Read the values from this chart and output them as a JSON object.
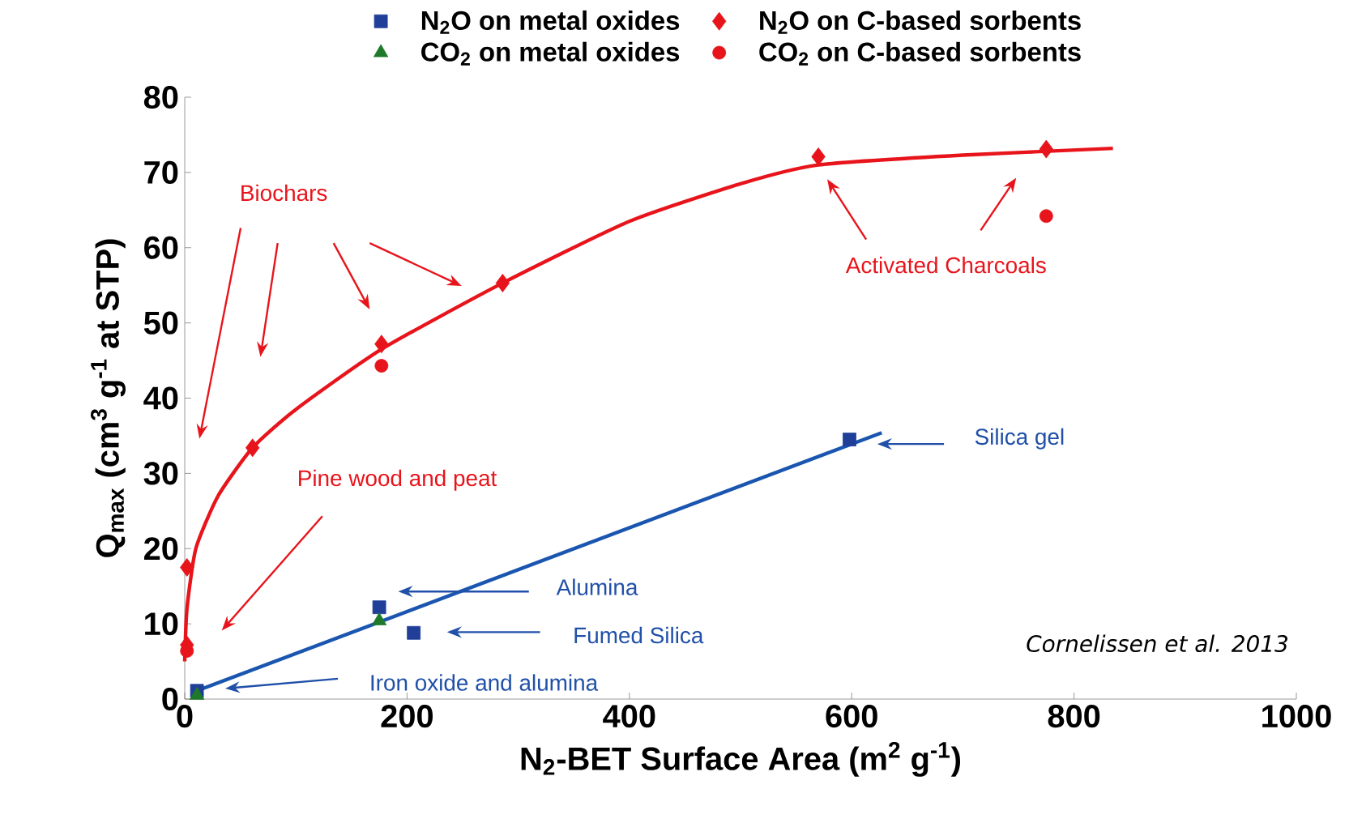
{
  "chart_data": {
    "type": "scatter",
    "xlabel": "N$_{2}$-BET Surface Area (m$^{2}$ g$^{-1}$)",
    "ylabel": "Q$_{max}$    (cm$^{3}$ g$^{-1}$ at STP)",
    "xlim": [
      0,
      1000
    ],
    "ylim": [
      0,
      80
    ],
    "xticks": [
      0,
      200,
      400,
      600,
      800,
      1000
    ],
    "yticks": [
      0,
      10,
      20,
      30,
      40,
      50,
      60,
      70,
      80
    ],
    "grid": false,
    "legend": "top",
    "series": [
      {
        "name": "N$_{2}$O on metal oxides",
        "marker": "square",
        "color": "#1f3f99",
        "x": [
          11,
          175,
          206,
          598
        ],
        "values": [
          1.1,
          12.2,
          8.8,
          34.5
        ]
      },
      {
        "name": "N$_{2}$O on C-based sorbents",
        "marker": "diamond",
        "color": "#e8141b",
        "x": [
          2,
          2,
          61,
          177,
          286,
          570,
          775
        ],
        "values": [
          7.2,
          17.5,
          33.4,
          47.2,
          55.3,
          72.1,
          73.1
        ]
      },
      {
        "name": "CO$_{2}$ on metal oxides",
        "marker": "triangle",
        "color": "#1e7a2a",
        "x": [
          11,
          175
        ],
        "values": [
          0.5,
          10.4
        ]
      },
      {
        "name": "CO$_{2}$ on C-based sorbents",
        "marker": "circle",
        "color": "#e8141b",
        "x": [
          2,
          177,
          775
        ],
        "values": [
          6.4,
          44.3,
          64.2
        ]
      },
      {
        "type": "line",
        "marker": "none",
        "color": "#e8141b",
        "x": [
          0,
          2,
          10,
          30,
          61,
          100,
          177,
          286,
          400,
          500,
          570,
          700,
          835
        ],
        "values": [
          5,
          12,
          20,
          27,
          33.4,
          38.5,
          46.5,
          55.3,
          63.5,
          68.5,
          71,
          72.3,
          73.2
        ]
      },
      {
        "type": "line",
        "marker": "none",
        "color": "#1a56b0",
        "x": [
          11,
          627
        ],
        "values": [
          1.1,
          35.4
        ]
      }
    ],
    "annotations": [
      "Biochars",
      "Activated Charcoals",
      "Pine wood and peat",
      "Silica gel",
      "Alumina",
      "Fumed Silica",
      "Iron oxide and alumina",
      "Cornelissen et al. 2013"
    ]
  }
}
